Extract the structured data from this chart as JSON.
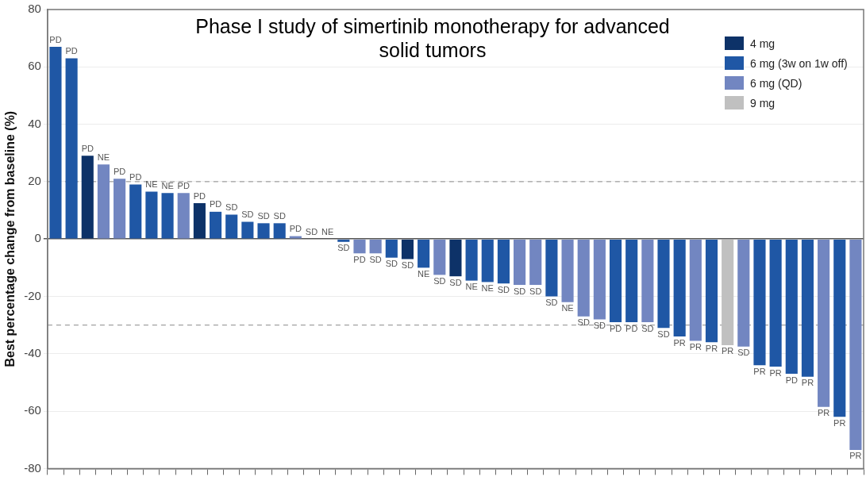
{
  "chart_data": {
    "type": "bar",
    "title": "Phase I study of simertinib monotherapy for advanced solid tumors",
    "ylabel": "Best percentage change from baseline (%)",
    "categories": [
      null,
      null,
      null,
      null,
      null,
      null,
      null,
      null,
      null,
      null,
      null,
      null,
      null,
      null,
      null,
      null,
      null,
      null,
      null,
      null,
      null,
      null,
      null,
      null,
      null,
      null,
      null,
      null,
      null,
      null,
      null,
      null,
      null,
      null,
      null,
      null,
      null,
      null,
      null,
      null,
      null,
      null,
      null,
      null,
      null,
      null,
      null,
      null,
      null,
      null,
      null
    ],
    "series": [
      {
        "name": "4 mg",
        "color": "#0d3268",
        "values": [
          null,
          null,
          29,
          null,
          null,
          null,
          null,
          null,
          null,
          12.5,
          null,
          null,
          null,
          null,
          null,
          null,
          null,
          null,
          null,
          null,
          null,
          null,
          -7,
          null,
          null,
          -13,
          null,
          null,
          null,
          null,
          null,
          null,
          null,
          null,
          null,
          null,
          null,
          null,
          null,
          null,
          null,
          null,
          null,
          null,
          null,
          null,
          null,
          null,
          null,
          null,
          null
        ],
        "value_labels": [
          null,
          null,
          "PD",
          null,
          null,
          null,
          null,
          null,
          null,
          "PD",
          null,
          null,
          null,
          null,
          null,
          null,
          null,
          null,
          null,
          null,
          null,
          null,
          "SD",
          null,
          null,
          "SD",
          null,
          null,
          null,
          null,
          null,
          null,
          null,
          null,
          null,
          null,
          null,
          null,
          null,
          null,
          null,
          null,
          null,
          null,
          null,
          null,
          null,
          null,
          null,
          null,
          null
        ]
      },
      {
        "name": "6 mg (3w on 1w off)",
        "color": "#1f57a5",
        "values": [
          67,
          63,
          null,
          null,
          null,
          19,
          16.5,
          16,
          null,
          null,
          9.5,
          8.5,
          6,
          5.5,
          5.5,
          null,
          0,
          0,
          -1,
          null,
          null,
          -6.5,
          null,
          -10,
          null,
          null,
          -14.5,
          -15,
          -15.5,
          null,
          null,
          -20,
          null,
          null,
          null,
          -29,
          -29,
          null,
          -31,
          -34,
          null,
          -36,
          null,
          null,
          -44,
          -44.5,
          -47,
          -48,
          null,
          -62,
          null
        ],
        "value_labels": [
          "PD",
          "PD",
          null,
          null,
          null,
          "PD",
          "NE",
          "NE",
          null,
          null,
          "PD",
          "SD",
          "SD",
          "SD",
          "SD",
          null,
          "SD",
          "NE",
          "SD",
          null,
          null,
          "SD",
          null,
          "NE",
          null,
          null,
          "NE",
          "NE",
          "SD",
          null,
          null,
          "SD",
          null,
          null,
          null,
          "PD",
          "PD",
          null,
          "SD",
          "PR",
          null,
          "PR",
          null,
          null,
          "PR",
          "PR",
          "PD",
          "PR",
          null,
          "PR",
          null
        ]
      },
      {
        "name": "6 mg (QD)",
        "color": "#7286c1",
        "values": [
          null,
          null,
          null,
          26,
          21,
          null,
          null,
          null,
          16,
          null,
          null,
          null,
          null,
          null,
          null,
          1,
          null,
          null,
          null,
          -5,
          -5,
          null,
          null,
          null,
          -12.5,
          null,
          null,
          null,
          null,
          -16,
          -16,
          null,
          -22,
          -27,
          -28,
          null,
          null,
          -29,
          null,
          null,
          -35.5,
          null,
          null,
          -37.5,
          null,
          null,
          null,
          null,
          -58.5,
          null,
          -73.5
        ],
        "value_labels": [
          null,
          null,
          null,
          "NE",
          "PD",
          null,
          null,
          null,
          "PD",
          null,
          null,
          null,
          null,
          null,
          null,
          "PD",
          null,
          null,
          null,
          "PD",
          "SD",
          null,
          null,
          null,
          "SD",
          null,
          null,
          null,
          null,
          "SD",
          "SD",
          null,
          "NE",
          "SD",
          "SD",
          null,
          null,
          "SD",
          null,
          null,
          "PR",
          null,
          null,
          "SD",
          null,
          null,
          null,
          null,
          "PR",
          null,
          "PR"
        ]
      },
      {
        "name": "9 mg",
        "color": "#c0c0c0",
        "values": [
          null,
          null,
          null,
          null,
          null,
          null,
          null,
          null,
          null,
          null,
          null,
          null,
          null,
          null,
          null,
          null,
          null,
          null,
          null,
          null,
          null,
          null,
          null,
          null,
          null,
          null,
          null,
          null,
          null,
          null,
          null,
          null,
          null,
          null,
          null,
          null,
          null,
          null,
          null,
          null,
          null,
          null,
          -37,
          null,
          null,
          null,
          null,
          null,
          null,
          null,
          null
        ],
        "value_labels": [
          null,
          null,
          null,
          null,
          null,
          null,
          null,
          null,
          null,
          null,
          null,
          null,
          null,
          null,
          null,
          null,
          null,
          null,
          null,
          null,
          null,
          null,
          null,
          null,
          null,
          null,
          null,
          null,
          null,
          null,
          null,
          null,
          null,
          null,
          null,
          null,
          null,
          null,
          null,
          null,
          null,
          null,
          "PR",
          null,
          null,
          null,
          null,
          null,
          null,
          null,
          null
        ]
      }
    ],
    "ylim": [
      -80,
      80
    ],
    "yticks": [
      -80,
      -60,
      -40,
      -20,
      0,
      20,
      40,
      60,
      80
    ],
    "grid": "y",
    "legend": "top right",
    "ref_lines": [
      {
        "axis": "y",
        "value": 20,
        "line_style": "dashed",
        "color": "#a0a0a0"
      },
      {
        "axis": "y",
        "value": -30,
        "line_style": "dashed",
        "color": "#a0a0a0"
      }
    ]
  }
}
